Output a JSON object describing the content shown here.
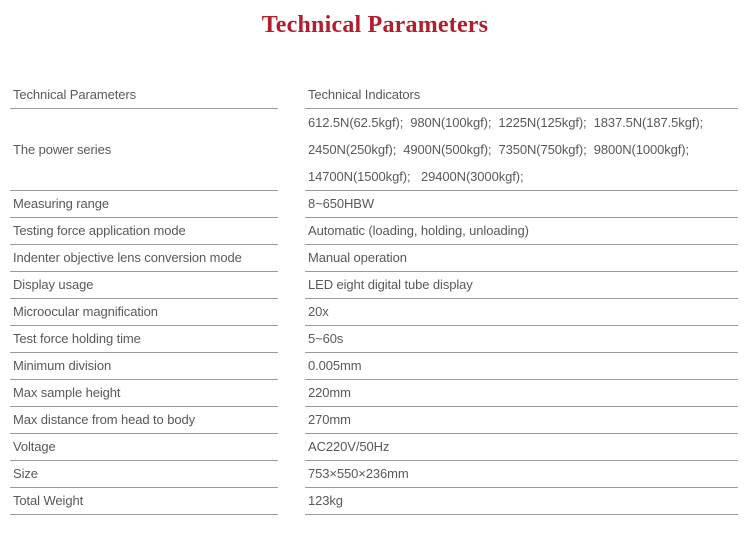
{
  "title": "Technical Parameters",
  "colors": {
    "title_red": "#b11e2e",
    "body_text": "#58595b",
    "divider_line": "#9a9a9b",
    "background": "#ffffff"
  },
  "table": {
    "header": {
      "parameters": "Technical Parameters",
      "indicators": "Technical Indicators"
    },
    "rows": [
      {
        "param": "The power series",
        "indicator": [
          "612.5N(62.5kgf);  980N(100kgf);  1225N(125kgf);  1837.5N(187.5kgf);",
          "2450N(250kgf);  4900N(500kgf);  7350N(750kgf);  9800N(1000kgf);",
          "14700N(1500kgf);   29400N(3000kgf);"
        ]
      },
      {
        "param": "Measuring range",
        "indicator": "8~650HBW"
      },
      {
        "param": "Testing force application mode",
        "indicator": "Automatic (loading, holding, unloading)"
      },
      {
        "param": "Indenter objective lens conversion mode",
        "indicator": "Manual operation"
      },
      {
        "param": "Display usage",
        "indicator": "LED eight digital tube display"
      },
      {
        "param": "Microocular magnification",
        "indicator": "20x"
      },
      {
        "param": "Test force holding time",
        "indicator": "5~60s"
      },
      {
        "param": "Minimum division",
        "indicator": "0.005mm"
      },
      {
        "param": "Max sample height",
        "indicator": "220mm"
      },
      {
        "param": "Max distance from head to body",
        "indicator": "270mm"
      },
      {
        "param": "Voltage",
        "indicator": "AC220V/50Hz"
      },
      {
        "param": "Size",
        "indicator": "753×550×236mm"
      },
      {
        "param": "Total Weight",
        "indicator": "123kg"
      }
    ]
  }
}
